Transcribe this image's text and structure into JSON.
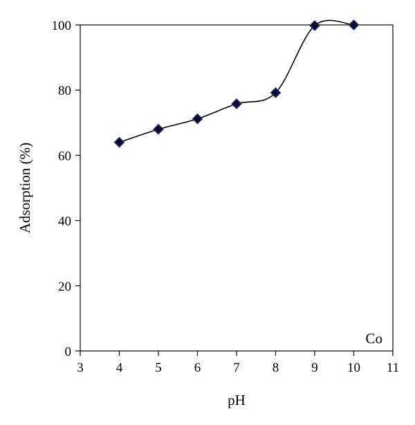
{
  "chart_data": {
    "type": "line",
    "xlabel": "pH",
    "ylabel": "Adsorption (%)",
    "xlim": [
      3,
      11
    ],
    "ylim": [
      0,
      100
    ],
    "x_ticks": [
      3,
      4,
      5,
      6,
      7,
      8,
      9,
      10,
      11
    ],
    "y_ticks": [
      0,
      20,
      40,
      60,
      80,
      100
    ],
    "grid": false,
    "annotation": "Co",
    "series": [
      {
        "x": [
          4,
          5,
          6,
          7,
          8,
          9,
          10
        ],
        "values": [
          64,
          68,
          71.2,
          75.8,
          79.2,
          99.8,
          100
        ],
        "marker": "diamond",
        "marker_fill": "#0d0d2a",
        "marker_edge": "#2d2d8c",
        "line_color": "#000000"
      }
    ]
  }
}
